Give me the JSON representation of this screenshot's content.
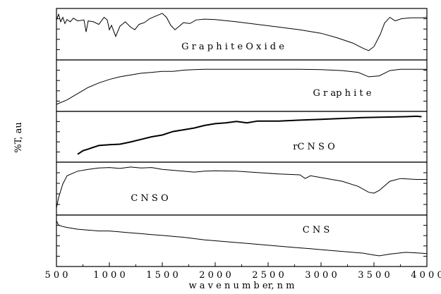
{
  "chart_data": {
    "type": "line",
    "layout": "stacked panels, shared x axis",
    "xlabel": "w a v e n u m  b er,  n m",
    "ylabel": "%T, au",
    "xlim": [
      500,
      4000
    ],
    "xticks": [
      500,
      1000,
      1500,
      2000,
      2500,
      3000,
      3500,
      4000
    ],
    "xtick_labels": [
      "5 0 0",
      "1 0 0 0",
      "1 5 0 0",
      "2 0 0 0",
      "2 5 0 0",
      "3 0 0 0",
      "3 5 0 0",
      "4 0 0 0"
    ],
    "grid": false,
    "series": [
      {
        "name": "G r a p h i t e   O x i d e",
        "color": "#000000",
        "points": [
          [
            500,
            0.82
          ],
          [
            520,
            0.95
          ],
          [
            540,
            0.78
          ],
          [
            560,
            0.88
          ],
          [
            580,
            0.74
          ],
          [
            600,
            0.83
          ],
          [
            630,
            0.78
          ],
          [
            660,
            0.86
          ],
          [
            700,
            0.8
          ],
          [
            760,
            0.82
          ],
          [
            780,
            0.55
          ],
          [
            800,
            0.8
          ],
          [
            850,
            0.78
          ],
          [
            900,
            0.72
          ],
          [
            950,
            0.88
          ],
          [
            980,
            0.82
          ],
          [
            1000,
            0.6
          ],
          [
            1020,
            0.7
          ],
          [
            1060,
            0.45
          ],
          [
            1100,
            0.68
          ],
          [
            1150,
            0.78
          ],
          [
            1200,
            0.66
          ],
          [
            1240,
            0.6
          ],
          [
            1280,
            0.72
          ],
          [
            1330,
            0.76
          ],
          [
            1380,
            0.85
          ],
          [
            1430,
            0.9
          ],
          [
            1500,
            0.97
          ],
          [
            1540,
            0.88
          ],
          [
            1580,
            0.7
          ],
          [
            1620,
            0.6
          ],
          [
            1660,
            0.68
          ],
          [
            1700,
            0.76
          ],
          [
            1760,
            0.74
          ],
          [
            1820,
            0.82
          ],
          [
            1900,
            0.84
          ],
          [
            2000,
            0.83
          ],
          [
            2200,
            0.78
          ],
          [
            2400,
            0.72
          ],
          [
            2600,
            0.66
          ],
          [
            2800,
            0.6
          ],
          [
            3000,
            0.52
          ],
          [
            3150,
            0.42
          ],
          [
            3300,
            0.3
          ],
          [
            3400,
            0.18
          ],
          [
            3450,
            0.13
          ],
          [
            3500,
            0.22
          ],
          [
            3560,
            0.5
          ],
          [
            3600,
            0.75
          ],
          [
            3650,
            0.88
          ],
          [
            3700,
            0.8
          ],
          [
            3760,
            0.85
          ],
          [
            3850,
            0.87
          ],
          [
            3950,
            0.87
          ],
          [
            4000,
            0.88
          ]
        ]
      },
      {
        "name": "G  r ap h i t e",
        "color": "#000000",
        "points": [
          [
            500,
            0.08
          ],
          [
            600,
            0.18
          ],
          [
            700,
            0.32
          ],
          [
            800,
            0.46
          ],
          [
            900,
            0.56
          ],
          [
            1000,
            0.64
          ],
          [
            1100,
            0.7
          ],
          [
            1200,
            0.74
          ],
          [
            1300,
            0.78
          ],
          [
            1400,
            0.8
          ],
          [
            1500,
            0.82
          ],
          [
            1600,
            0.82
          ],
          [
            1700,
            0.85
          ],
          [
            1800,
            0.86
          ],
          [
            1900,
            0.87
          ],
          [
            2000,
            0.87
          ],
          [
            2200,
            0.87
          ],
          [
            2500,
            0.87
          ],
          [
            2800,
            0.87
          ],
          [
            3000,
            0.86
          ],
          [
            3200,
            0.84
          ],
          [
            3350,
            0.8
          ],
          [
            3450,
            0.7
          ],
          [
            3550,
            0.72
          ],
          [
            3650,
            0.84
          ],
          [
            3750,
            0.87
          ],
          [
            3900,
            0.87
          ],
          [
            4000,
            0.87
          ]
        ]
      },
      {
        "name": "rC N S O",
        "color": "#000000",
        "points": [
          [
            700,
            0.1
          ],
          [
            750,
            0.18
          ],
          [
            800,
            0.22
          ],
          [
            900,
            0.3
          ],
          [
            1000,
            0.32
          ],
          [
            1100,
            0.33
          ],
          [
            1200,
            0.38
          ],
          [
            1300,
            0.44
          ],
          [
            1400,
            0.5
          ],
          [
            1500,
            0.54
          ],
          [
            1600,
            0.62
          ],
          [
            1700,
            0.66
          ],
          [
            1800,
            0.7
          ],
          [
            1900,
            0.76
          ],
          [
            2000,
            0.8
          ],
          [
            2100,
            0.82
          ],
          [
            2200,
            0.85
          ],
          [
            2300,
            0.82
          ],
          [
            2400,
            0.86
          ],
          [
            2600,
            0.86
          ],
          [
            2800,
            0.88
          ],
          [
            3000,
            0.9
          ],
          [
            3200,
            0.92
          ],
          [
            3400,
            0.94
          ],
          [
            3600,
            0.95
          ],
          [
            3800,
            0.96
          ],
          [
            3900,
            0.97
          ],
          [
            3950,
            0.96
          ]
        ]
      },
      {
        "name": "C  N  S O",
        "color": "#000000",
        "points": [
          [
            500,
            0.08
          ],
          [
            520,
            0.3
          ],
          [
            560,
            0.6
          ],
          [
            600,
            0.78
          ],
          [
            700,
            0.88
          ],
          [
            800,
            0.92
          ],
          [
            900,
            0.95
          ],
          [
            1000,
            0.96
          ],
          [
            1100,
            0.94
          ],
          [
            1200,
            0.97
          ],
          [
            1300,
            0.95
          ],
          [
            1400,
            0.96
          ],
          [
            1500,
            0.92
          ],
          [
            1600,
            0.9
          ],
          [
            1700,
            0.88
          ],
          [
            1800,
            0.86
          ],
          [
            1900,
            0.88
          ],
          [
            2000,
            0.89
          ],
          [
            2200,
            0.88
          ],
          [
            2400,
            0.85
          ],
          [
            2600,
            0.82
          ],
          [
            2800,
            0.8
          ],
          [
            2850,
            0.72
          ],
          [
            2900,
            0.78
          ],
          [
            3000,
            0.74
          ],
          [
            3200,
            0.66
          ],
          [
            3350,
            0.55
          ],
          [
            3450,
            0.42
          ],
          [
            3500,
            0.4
          ],
          [
            3550,
            0.46
          ],
          [
            3650,
            0.66
          ],
          [
            3750,
            0.72
          ],
          [
            3900,
            0.7
          ],
          [
            4000,
            0.7
          ]
        ]
      },
      {
        "name": "C  N  S",
        "color": "#000000",
        "points": [
          [
            500,
            0.95
          ],
          [
            520,
            0.85
          ],
          [
            560,
            0.82
          ],
          [
            600,
            0.8
          ],
          [
            700,
            0.76
          ],
          [
            800,
            0.74
          ],
          [
            900,
            0.72
          ],
          [
            1000,
            0.72
          ],
          [
            1100,
            0.7
          ],
          [
            1200,
            0.68
          ],
          [
            1300,
            0.66
          ],
          [
            1400,
            0.64
          ],
          [
            1500,
            0.62
          ],
          [
            1600,
            0.6
          ],
          [
            1700,
            0.58
          ],
          [
            1800,
            0.55
          ],
          [
            1900,
            0.52
          ],
          [
            2000,
            0.5
          ],
          [
            2200,
            0.46
          ],
          [
            2400,
            0.42
          ],
          [
            2600,
            0.38
          ],
          [
            2800,
            0.34
          ],
          [
            2900,
            0.32
          ],
          [
            3000,
            0.3
          ],
          [
            3200,
            0.26
          ],
          [
            3400,
            0.22
          ],
          [
            3500,
            0.18
          ],
          [
            3550,
            0.16
          ],
          [
            3650,
            0.2
          ],
          [
            3800,
            0.24
          ],
          [
            3950,
            0.22
          ],
          [
            4000,
            0.21
          ]
        ]
      }
    ]
  }
}
